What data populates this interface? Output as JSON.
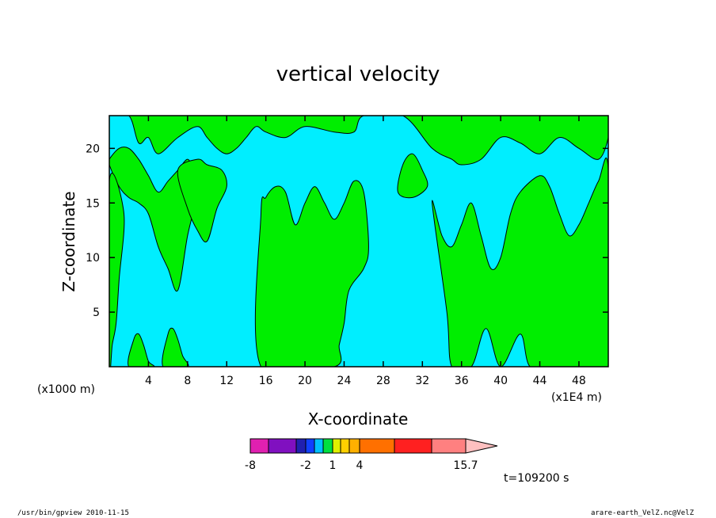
{
  "chart_data": {
    "type": "heatmap",
    "title": "vertical velocity",
    "xlabel": "X-coordinate",
    "ylabel": "Z-coordinate",
    "x_unit_left": "(x1000 m)",
    "x_unit_right": "(x1E4 m)",
    "xlim": [
      0,
      51
    ],
    "ylim": [
      0,
      23
    ],
    "x_ticks": [
      4,
      8,
      12,
      16,
      20,
      24,
      28,
      32,
      36,
      40,
      44,
      48
    ],
    "y_ticks": [
      5,
      10,
      15,
      20
    ],
    "colorbar": {
      "colors": [
        "#e020b0",
        "#8010c0",
        "#2020b0",
        "#1040ff",
        "#00c0ff",
        "#00e040",
        "#e0f000",
        "#ffd000",
        "#ffb000",
        "#ff7000",
        "#ff2020",
        "#ff8080",
        "#ffc0c0"
      ],
      "labels": [
        "-8",
        "-2",
        "1",
        "4",
        "15.7"
      ]
    },
    "fills": {
      "negative": "#00eeff",
      "positive": "#00ee00"
    },
    "regions_positive": [
      {
        "x": [
          0,
          2,
          3,
          4,
          5,
          7,
          9,
          10,
          11,
          12,
          13,
          14,
          15,
          16,
          18,
          20,
          23,
          25,
          26,
          30,
          33,
          35,
          36,
          38,
          40,
          42,
          44,
          46,
          48,
          50,
          51,
          51,
          0
        ],
        "z": [
          23,
          23,
          20.5,
          21,
          19.5,
          21,
          22,
          21,
          20,
          19.5,
          20,
          21,
          22,
          21.5,
          21,
          22,
          21.5,
          21.5,
          23,
          23,
          20,
          19,
          18.5,
          19,
          21,
          20.5,
          19.5,
          21,
          20,
          19,
          21,
          23,
          23
        ]
      },
      {
        "x": [
          0,
          1,
          2,
          3,
          4,
          5,
          6,
          7,
          8,
          9,
          8.5,
          8,
          7,
          6,
          5,
          4,
          3,
          2,
          1,
          0
        ],
        "z": [
          18.5,
          16.5,
          15.5,
          15,
          14,
          11,
          9,
          7,
          12,
          16,
          18,
          19,
          18,
          17,
          16,
          17.5,
          19,
          20,
          20,
          19
        ]
      },
      {
        "x": [
          0,
          1.5,
          1,
          0.7,
          0.3,
          0
        ],
        "z": [
          17,
          14,
          8,
          4,
          2,
          0
        ]
      },
      {
        "x": [
          7,
          8,
          9,
          10,
          11,
          12,
          11.5,
          10,
          9
        ],
        "z": [
          18,
          14.5,
          12.5,
          11.5,
          14.5,
          16.5,
          18,
          18.5,
          19
        ]
      },
      {
        "x": [
          15.5,
          16,
          17,
          18,
          19,
          20,
          21,
          22,
          23,
          24,
          25,
          26,
          26.5,
          26,
          24.5,
          24,
          23.5,
          23,
          15.5
        ],
        "z": [
          14,
          15.5,
          16.5,
          16,
          13,
          15,
          16.5,
          15,
          13.5,
          15,
          17,
          16,
          11,
          9,
          7,
          4,
          2,
          0,
          0
        ]
      },
      {
        "x": [
          33,
          34,
          35,
          36,
          37,
          38,
          39,
          40,
          41,
          42,
          44,
          45,
          46,
          47,
          48,
          49,
          50,
          51,
          51,
          48,
          45.5,
          43,
          42,
          40,
          38.5,
          37,
          35,
          34.5
        ],
        "z": [
          15,
          12,
          11,
          13,
          15,
          12,
          9,
          10,
          14,
          16,
          17.5,
          16.5,
          14,
          12,
          13,
          15,
          17,
          18,
          0,
          0,
          0,
          0,
          3,
          0,
          3.5,
          0,
          0,
          5
        ]
      },
      {
        "x": [
          2,
          2.5,
          3,
          3.5,
          4,
          4.5
        ],
        "z": [
          0,
          2.5,
          3,
          2,
          0.5,
          0
        ]
      },
      {
        "x": [
          5.5,
          6,
          6.5,
          7,
          7.5,
          8
        ],
        "z": [
          0,
          3,
          3.5,
          2.5,
          1,
          0
        ]
      },
      {
        "x": [
          29.5,
          30,
          31,
          32,
          32.5,
          31
        ],
        "z": [
          16,
          18.5,
          19.5,
          18,
          16.5,
          15.5
        ]
      }
    ]
  },
  "annotations": {
    "time": "t=109200 s",
    "footer_left": "/usr/bin/gpview   2010-11-15",
    "footer_right": "arare-earth_VelZ.nc@VelZ"
  }
}
